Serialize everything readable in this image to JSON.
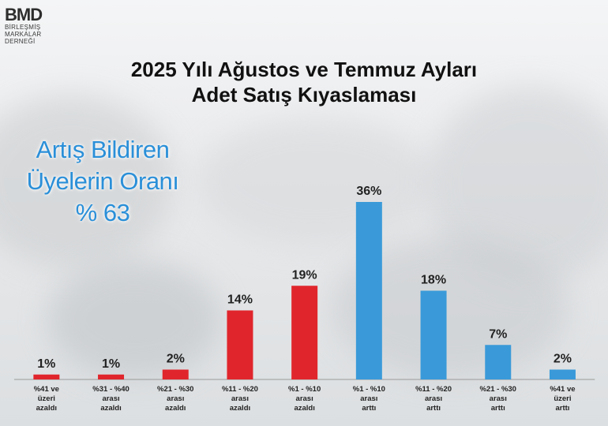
{
  "brand": {
    "logo_text": "BMD",
    "logo_sub_line1": "BİRLEŞMİŞ",
    "logo_sub_line2": "MARKALAR",
    "logo_sub_line3": "DERNEĞİ"
  },
  "header": {
    "title_line1": "2025 Yılı Ağustos ve Temmuz Ayları",
    "title_line2": "Adet Satış Kıyaslaması"
  },
  "callout": {
    "line1": "Artış Bildiren",
    "line2": "Üyelerin Oranı",
    "line3": "% 63"
  },
  "colors": {
    "decrease": "#e0262c",
    "increase": "#3a9ad9",
    "text": "#222222"
  },
  "chart_data": {
    "type": "bar",
    "categories": [
      [
        "%41 ve",
        "üzeri",
        "azaldı"
      ],
      [
        "%31 - %40",
        "arası",
        "azaldı"
      ],
      [
        "%21 - %30",
        "arası",
        "azaldı"
      ],
      [
        "%11 - %20",
        "arası",
        "azaldı"
      ],
      [
        "%1 - %10",
        "arası",
        "azaldı"
      ],
      [
        "%1 - %10",
        "arası",
        "arttı"
      ],
      [
        "%11 - %20",
        "arası",
        "arttı"
      ],
      [
        "%21 - %30",
        "arası",
        "arttı"
      ],
      [
        "%41 ve",
        "üzeri",
        "arttı"
      ]
    ],
    "values": [
      1,
      1,
      2,
      14,
      19,
      36,
      18,
      7,
      2
    ],
    "value_labels": [
      "1%",
      "1%",
      "2%",
      "14%",
      "19%",
      "36%",
      "18%",
      "7%",
      "2%"
    ],
    "bar_groups": [
      "decrease",
      "decrease",
      "decrease",
      "decrease",
      "decrease",
      "increase",
      "increase",
      "increase",
      "increase"
    ],
    "ylim": [
      0,
      36
    ],
    "grid": false,
    "legend": "none"
  }
}
